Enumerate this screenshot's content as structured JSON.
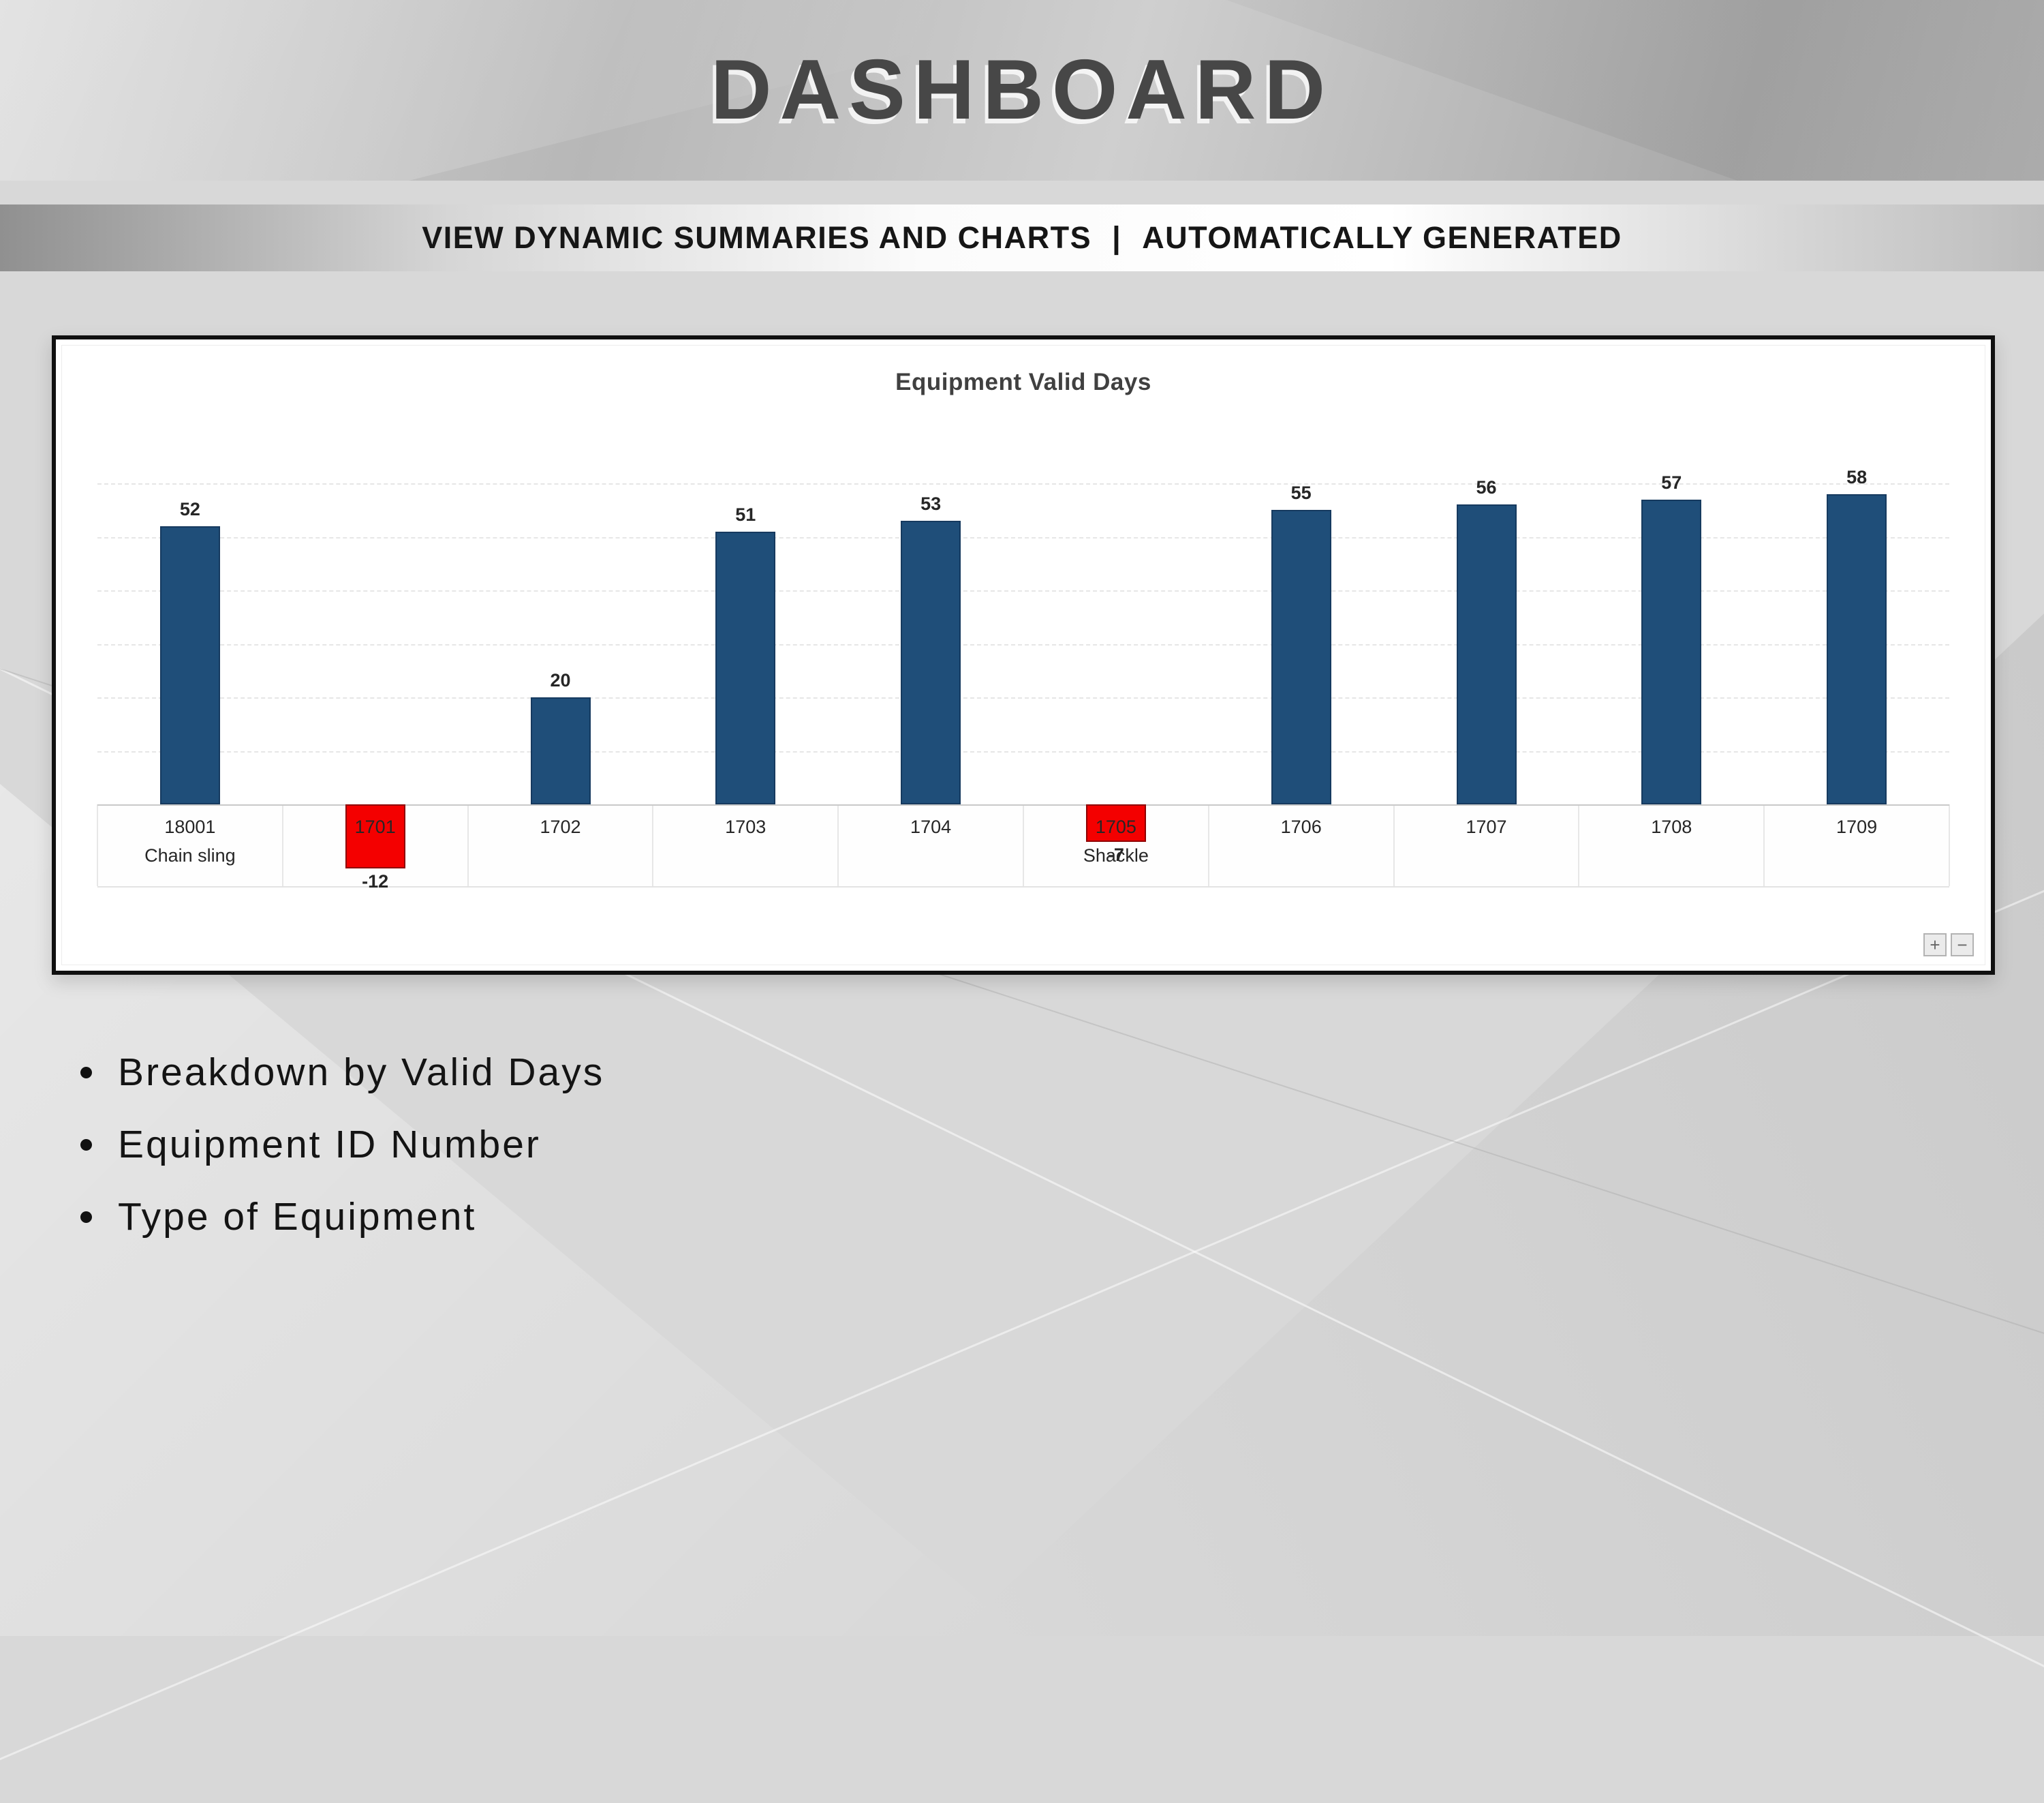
{
  "header": {
    "title": "DASHBOARD"
  },
  "subtitle": {
    "left": "VIEW DYNAMIC SUMMARIES AND CHARTS",
    "separator": "|",
    "right": "AUTOMATICALLY GENERATED"
  },
  "chart_data": {
    "type": "bar",
    "title": "Equipment Valid Days",
    "categories": [
      "18001",
      "1701",
      "1702",
      "1703",
      "1704",
      "1705",
      "1706",
      "1707",
      "1708",
      "1709"
    ],
    "values": [
      52,
      -12,
      20,
      51,
      53,
      -7,
      55,
      56,
      57,
      58
    ],
    "group_labels": [
      {
        "index": 0,
        "label": "Chain sling"
      },
      {
        "index": 5,
        "label": "Shackle"
      }
    ],
    "positive_color": "#1F4E79",
    "negative_color": "#F40000",
    "ylim": [
      -15,
      65
    ],
    "gridline_values": [
      60,
      50,
      40,
      30,
      20,
      10,
      -10
    ],
    "grid": "dashed",
    "legend": "none",
    "xlabel": "",
    "ylabel": ""
  },
  "zoom_controls": {
    "zoom_in": "+",
    "zoom_out": "−"
  },
  "bullets": [
    "Breakdown by Valid Days",
    "Equipment ID Number",
    "Type of Equipment"
  ]
}
